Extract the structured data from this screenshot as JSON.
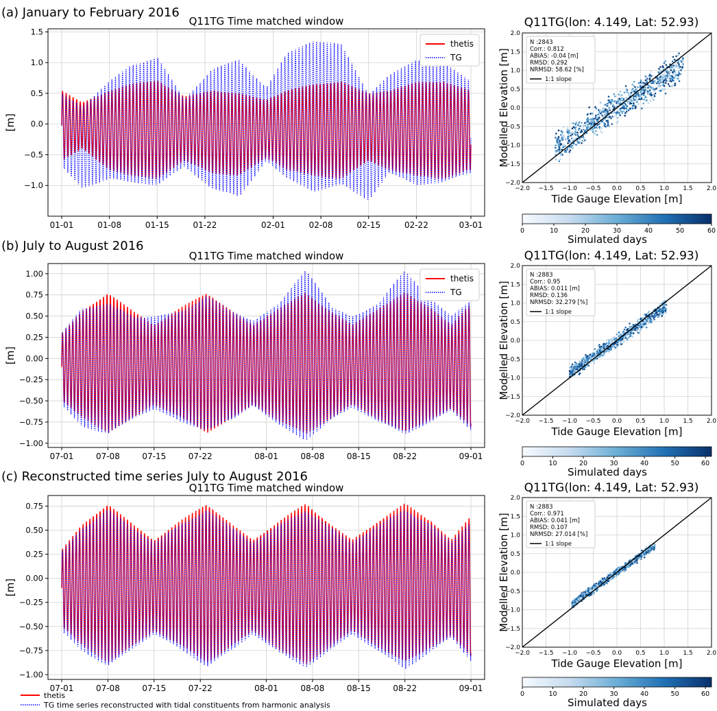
{
  "panels": [
    {
      "section_title": "(a) January to February 2016",
      "ts": {
        "title": "Q11TG Time matched window",
        "ylabel": "[m]",
        "ylim": [
          -1.5,
          1.55
        ],
        "yticks": [
          -1.0,
          -0.5,
          0.0,
          0.5,
          1.0,
          1.5
        ],
        "ytick_labels": [
          "−1.0",
          "−0.5",
          "0.0",
          "0.5",
          "1.0",
          "1.5"
        ],
        "xtick_labels": [
          "01-01",
          "01-08",
          "01-15",
          "01-22",
          "02-01",
          "02-08",
          "02-15",
          "02-22",
          "03-01"
        ],
        "xtick_days": [
          0,
          7,
          14,
          21,
          31,
          38,
          45,
          52,
          60
        ],
        "days": 60,
        "legend_position": "top-right",
        "series": [
          {
            "name": "thetis",
            "style": "solid",
            "color": "#ff0000",
            "envelope_days": [
              0,
              3,
              7,
              10,
              14,
              18,
              22,
              26,
              30,
              33,
              37,
              41,
              45,
              48,
              52,
              56,
              60
            ],
            "envelope_high": [
              0.55,
              0.35,
              0.55,
              0.65,
              0.72,
              0.45,
              0.55,
              0.5,
              0.4,
              0.55,
              0.65,
              0.7,
              0.5,
              0.55,
              0.68,
              0.7,
              0.55
            ],
            "envelope_low": [
              -0.6,
              -0.4,
              -0.75,
              -0.85,
              -0.9,
              -0.6,
              -0.8,
              -0.85,
              -0.55,
              -0.75,
              -0.85,
              -0.9,
              -0.6,
              -0.75,
              -0.85,
              -0.9,
              -0.75
            ]
          },
          {
            "name": "TG",
            "style": "dotted",
            "color": "#0000ff",
            "envelope_days": [
              0,
              3,
              7,
              10,
              14,
              18,
              22,
              26,
              30,
              33,
              37,
              41,
              45,
              48,
              52,
              56,
              60
            ],
            "envelope_high": [
              0.5,
              0.3,
              0.7,
              0.95,
              1.1,
              0.4,
              0.9,
              1.05,
              0.6,
              1.15,
              1.38,
              1.3,
              0.5,
              0.8,
              1.05,
              1.0,
              0.7
            ],
            "envelope_low": [
              -0.7,
              -1.05,
              -0.9,
              -0.95,
              -1.0,
              -0.7,
              -1.05,
              -1.2,
              -0.6,
              -0.9,
              -1.1,
              -1.0,
              -1.25,
              -0.8,
              -1.0,
              -0.95,
              -0.8
            ]
          }
        ]
      },
      "scatter": {
        "title": "Q11TG(lon: 4.149, Lat: 52.93)",
        "xlabel": "Tide Gauge Elevation [m]",
        "ylabel": "Modelled Elevation [m]",
        "xlim": [
          -2.0,
          2.0
        ],
        "ylim": [
          -2.0,
          2.0
        ],
        "ticks": [
          -2.0,
          -1.5,
          -1.0,
          -0.5,
          0.0,
          0.5,
          1.0,
          1.5,
          2.0
        ],
        "tick_labels": [
          "−2.0",
          "−1.5",
          "−1.0",
          "−0.5",
          "0.0",
          "0.5",
          "1.0",
          "1.5",
          "2.0"
        ],
        "stats": [
          "N :2843",
          "Corr.: 0.812",
          "ABIAS: -0.04 [m]",
          "RMSD: 0.292",
          "NRMSD: 58.62 [%]"
        ],
        "slope_label": "1:1 slope",
        "cloud": {
          "x_range": [
            -1.3,
            1.4
          ],
          "slope": 0.8,
          "spread": 0.22
        },
        "colorbar_label": "Simulated days",
        "colorbar_ticks": [
          0,
          10,
          20,
          30,
          40,
          50,
          60
        ],
        "colorbar_range": [
          0,
          60
        ],
        "colors": [
          "#f7fbff",
          "#c6dbef",
          "#6baed6",
          "#2171b5",
          "#08306b"
        ]
      }
    },
    {
      "section_title": "(b) July to August 2016",
      "ts": {
        "title": "Q11TG Time matched window",
        "ylabel": "[m]",
        "ylim": [
          -1.05,
          1.12
        ],
        "yticks": [
          -1.0,
          -0.75,
          -0.5,
          -0.25,
          0.0,
          0.25,
          0.5,
          0.75,
          1.0
        ],
        "ytick_labels": [
          "−1.00",
          "−0.75",
          "−0.50",
          "−0.25",
          "0.00",
          "0.25",
          "0.50",
          "0.75",
          "1.00"
        ],
        "xtick_labels": [
          "07-01",
          "07-08",
          "07-15",
          "07-22",
          "08-01",
          "08-08",
          "08-15",
          "08-22",
          "09-01"
        ],
        "xtick_days": [
          0,
          7,
          14,
          21,
          31,
          38,
          45,
          52,
          62
        ],
        "days": 62,
        "legend_position": "top-right",
        "series": [
          {
            "name": "thetis",
            "style": "solid",
            "color": "#ff0000",
            "envelope_days": [
              0,
              3,
              7,
              11,
              14,
              18,
              22,
              26,
              29,
              33,
              37,
              41,
              44,
              48,
              52,
              56,
              59,
              62
            ],
            "envelope_high": [
              0.3,
              0.55,
              0.78,
              0.55,
              0.4,
              0.6,
              0.78,
              0.55,
              0.4,
              0.6,
              0.78,
              0.55,
              0.4,
              0.6,
              0.78,
              0.6,
              0.4,
              0.65
            ],
            "envelope_low": [
              -0.5,
              -0.7,
              -0.88,
              -0.7,
              -0.55,
              -0.7,
              -0.88,
              -0.7,
              -0.55,
              -0.75,
              -0.9,
              -0.7,
              -0.55,
              -0.72,
              -0.88,
              -0.72,
              -0.6,
              -0.82
            ]
          },
          {
            "name": "TG",
            "style": "dotted",
            "color": "#0000ff",
            "envelope_days": [
              0,
              3,
              7,
              11,
              14,
              18,
              22,
              26,
              29,
              33,
              37,
              41,
              44,
              48,
              52,
              56,
              59,
              62
            ],
            "envelope_high": [
              0.3,
              0.6,
              0.65,
              0.5,
              0.5,
              0.55,
              0.75,
              0.55,
              0.45,
              0.65,
              1.07,
              0.6,
              0.5,
              0.65,
              1.05,
              0.7,
              0.5,
              0.7
            ],
            "envelope_low": [
              -0.55,
              -0.8,
              -0.9,
              -0.7,
              -0.6,
              -0.75,
              -0.85,
              -0.72,
              -0.55,
              -0.8,
              -0.97,
              -0.72,
              -0.58,
              -0.75,
              -0.9,
              -0.75,
              -0.62,
              -0.85
            ]
          }
        ]
      },
      "scatter": {
        "title": "Q11TG(lon: 4.149, Lat: 52.93)",
        "xlabel": "Tide Gauge Elevation [m]",
        "ylabel": "Modelled Elevation [m]",
        "xlim": [
          -2.0,
          2.0
        ],
        "ylim": [
          -2.0,
          2.0
        ],
        "ticks": [
          -2.0,
          -1.5,
          -1.0,
          -0.5,
          0.0,
          0.5,
          1.0,
          1.5,
          2.0
        ],
        "tick_labels": [
          "−2.0",
          "−1.5",
          "−1.0",
          "−0.5",
          "0.0",
          "0.5",
          "1.0",
          "1.5",
          "2.0"
        ],
        "stats": [
          "N :2883",
          "Corr.: 0.95",
          "ABIAS: 0.011 [m]",
          "RMSD: 0.136",
          "NRMSD: 32.279 [%]"
        ],
        "slope_label": "1:1 slope",
        "cloud": {
          "x_range": [
            -1.0,
            1.05
          ],
          "slope": 0.88,
          "spread": 0.1
        },
        "colorbar_label": "Simulated days",
        "colorbar_ticks": [
          0,
          10,
          20,
          30,
          40,
          50,
          60
        ],
        "colorbar_range": [
          0,
          62
        ],
        "colors": [
          "#f7fbff",
          "#c6dbef",
          "#6baed6",
          "#2171b5",
          "#08306b"
        ]
      }
    },
    {
      "section_title": "(c) Reconstructed time series July to August 2016",
      "ts": {
        "title": "Q11TG Time matched window",
        "ylabel": "[m]",
        "ylim": [
          -1.05,
          0.86
        ],
        "yticks": [
          -1.0,
          -0.75,
          -0.5,
          -0.25,
          0.0,
          0.25,
          0.5,
          0.75
        ],
        "ytick_labels": [
          "−1.00",
          "−0.75",
          "−0.50",
          "−0.25",
          "0.00",
          "0.25",
          "0.50",
          "0.75"
        ],
        "xtick_labels": [
          "07-01",
          "07-08",
          "07-15",
          "07-22",
          "08-01",
          "08-08",
          "08-15",
          "08-22",
          "09-01"
        ],
        "xtick_days": [
          0,
          7,
          14,
          21,
          31,
          38,
          45,
          52,
          62
        ],
        "days": 62,
        "legend_position": "below",
        "series": [
          {
            "name": "thetis",
            "style": "solid",
            "color": "#ff0000",
            "envelope_days": [
              0,
              3,
              7,
              11,
              14,
              18,
              22,
              26,
              29,
              33,
              37,
              41,
              44,
              48,
              52,
              56,
              59,
              62
            ],
            "envelope_high": [
              0.3,
              0.55,
              0.78,
              0.55,
              0.4,
              0.6,
              0.78,
              0.55,
              0.4,
              0.6,
              0.78,
              0.55,
              0.4,
              0.6,
              0.78,
              0.6,
              0.4,
              0.65
            ],
            "envelope_low": [
              -0.5,
              -0.7,
              -0.88,
              -0.7,
              -0.55,
              -0.7,
              -0.88,
              -0.7,
              -0.55,
              -0.75,
              -0.9,
              -0.7,
              -0.55,
              -0.72,
              -0.88,
              -0.72,
              -0.6,
              -0.82
            ]
          },
          {
            "name": "TG time series reconstructed  with tidal constituents from harmonic analysis",
            "style": "dotted",
            "color": "#0000ff",
            "envelope_days": [
              0,
              3,
              7,
              11,
              14,
              18,
              22,
              26,
              29,
              33,
              37,
              41,
              44,
              48,
              52,
              56,
              59,
              62
            ],
            "envelope_high": [
              0.28,
              0.52,
              0.72,
              0.52,
              0.38,
              0.56,
              0.72,
              0.52,
              0.38,
              0.56,
              0.72,
              0.52,
              0.38,
              0.56,
              0.72,
              0.56,
              0.38,
              0.6
            ],
            "envelope_low": [
              -0.55,
              -0.75,
              -0.92,
              -0.72,
              -0.58,
              -0.74,
              -0.92,
              -0.74,
              -0.58,
              -0.78,
              -0.93,
              -0.74,
              -0.58,
              -0.76,
              -0.95,
              -0.76,
              -0.62,
              -0.86
            ]
          }
        ]
      },
      "scatter": {
        "title": "Q11TG(lon: 4.149, Lat: 52.93)",
        "xlabel": "Tide Gauge Elevation [m]",
        "ylabel": "Modelled Elevation [m]",
        "xlim": [
          -2.0,
          2.0
        ],
        "ylim": [
          -2.0,
          2.0
        ],
        "ticks": [
          -2.0,
          -1.5,
          -1.0,
          -0.5,
          0.0,
          0.5,
          1.0,
          1.5,
          2.0
        ],
        "tick_labels": [
          "−2.0",
          "−1.5",
          "−1.0",
          "−0.5",
          "0.0",
          "0.5",
          "1.0",
          "1.5",
          "2.0"
        ],
        "stats": [
          "N :2883",
          "Corr.: 0.971",
          "ABIAS: 0.041 [m]",
          "RMSD: 0.107",
          "NRMSD: 27.014 [%]"
        ],
        "slope_label": "1:1 slope",
        "cloud": {
          "x_range": [
            -0.95,
            0.8
          ],
          "slope": 0.9,
          "spread": 0.06
        },
        "colorbar_label": "Simulated days",
        "colorbar_ticks": [
          0,
          10,
          20,
          30,
          40,
          50,
          60
        ],
        "colorbar_range": [
          0,
          62
        ],
        "colors": [
          "#f7fbff",
          "#c6dbef",
          "#6baed6",
          "#2171b5",
          "#08306b"
        ]
      }
    }
  ],
  "chart_data": [
    {
      "type": "line",
      "title": "Q11TG Time matched window",
      "ylabel": "[m]",
      "ylim": [
        -1.5,
        1.55
      ],
      "categories": [
        "01-01",
        "01-08",
        "01-15",
        "01-22",
        "02-01",
        "02-08",
        "02-15",
        "02-22",
        "03-01"
      ],
      "series": [
        {
          "name": "thetis",
          "peak_high": 0.72,
          "peak_low": -0.9
        },
        {
          "name": "TG",
          "peak_high": 1.38,
          "peak_low": -1.25
        }
      ]
    },
    {
      "type": "scatter",
      "title": "Q11TG(lon: 4.149, Lat: 52.93)",
      "xlabel": "Tide Gauge Elevation [m]",
      "ylabel": "Modelled Elevation [m]",
      "xlim": [
        -2.0,
        2.0
      ],
      "ylim": [
        -2.0,
        2.0
      ]
    },
    {
      "type": "line",
      "title": "Q11TG Time matched window",
      "ylabel": "[m]",
      "ylim": [
        -1.05,
        1.12
      ],
      "categories": [
        "07-01",
        "07-08",
        "07-15",
        "07-22",
        "08-01",
        "08-08",
        "08-15",
        "08-22",
        "09-01"
      ],
      "series": [
        {
          "name": "thetis",
          "peak_high": 0.78,
          "peak_low": -0.9
        },
        {
          "name": "TG",
          "peak_high": 1.07,
          "peak_low": -0.97
        }
      ]
    },
    {
      "type": "scatter",
      "title": "Q11TG(lon: 4.149, Lat: 52.93)",
      "xlabel": "Tide Gauge Elevation [m]",
      "ylabel": "Modelled Elevation [m]",
      "xlim": [
        -2.0,
        2.0
      ],
      "ylim": [
        -2.0,
        2.0
      ]
    },
    {
      "type": "line",
      "title": "Q11TG Time matched window",
      "ylabel": "[m]",
      "ylim": [
        -1.05,
        0.86
      ],
      "categories": [
        "07-01",
        "07-08",
        "07-15",
        "07-22",
        "08-01",
        "08-08",
        "08-15",
        "08-22",
        "09-01"
      ],
      "series": [
        {
          "name": "thetis",
          "peak_high": 0.78,
          "peak_low": -0.9
        },
        {
          "name": "TG time series reconstructed  with tidal constituents from harmonic analysis",
          "peak_high": 0.72,
          "peak_low": -0.95
        }
      ]
    },
    {
      "type": "scatter",
      "title": "Q11TG(lon: 4.149, Lat: 52.93)",
      "xlabel": "Tide Gauge Elevation [m]",
      "ylabel": "Modelled Elevation [m]",
      "xlim": [
        -2.0,
        2.0
      ],
      "ylim": [
        -2.0,
        2.0
      ]
    }
  ]
}
